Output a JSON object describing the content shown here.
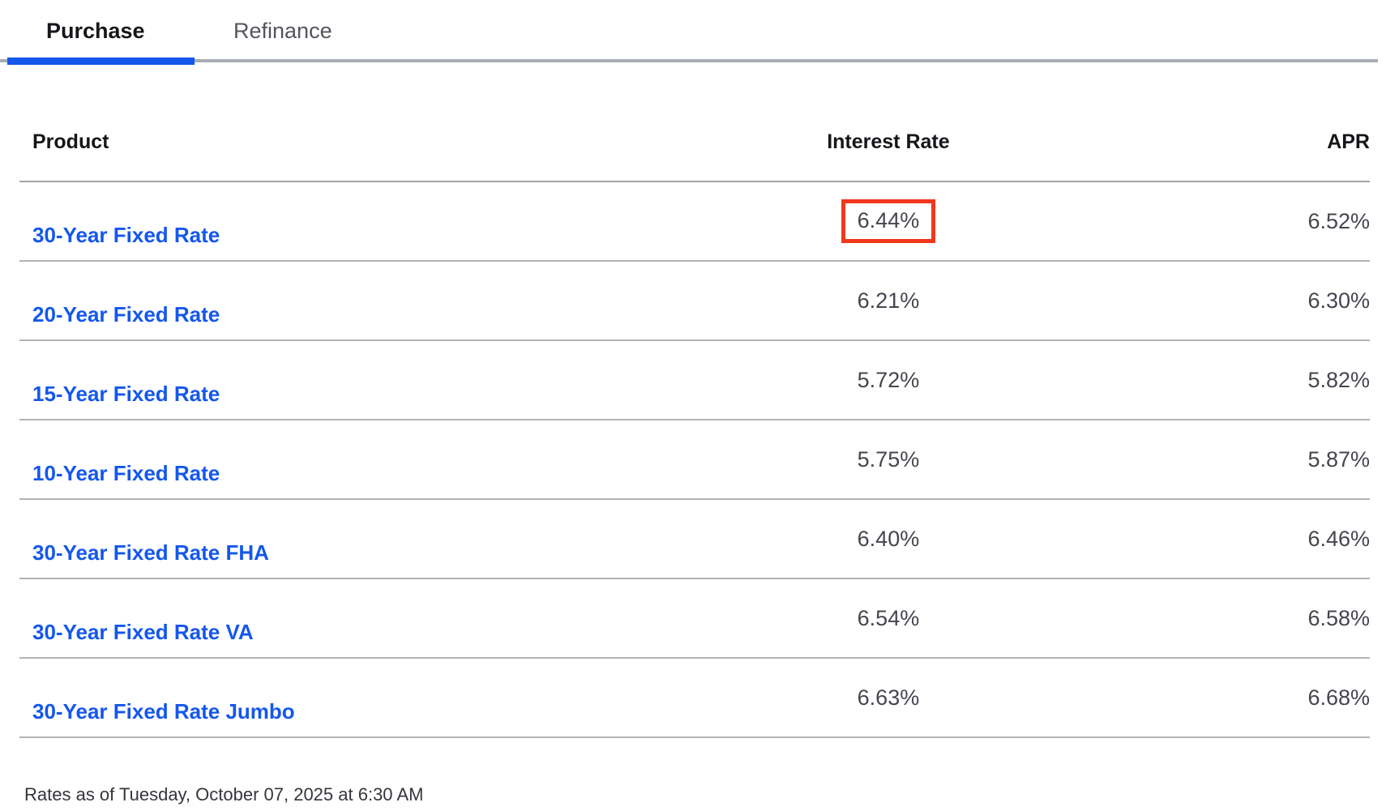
{
  "tabs": [
    {
      "label": "Purchase",
      "active": true
    },
    {
      "label": "Refinance",
      "active": false
    }
  ],
  "table": {
    "columns": [
      "Product",
      "Interest Rate",
      "APR"
    ],
    "rows": [
      {
        "product": "30-Year Fixed Rate",
        "interest_rate": "6.44%",
        "apr": "6.52%",
        "highlighted": true
      },
      {
        "product": "20-Year Fixed Rate",
        "interest_rate": "6.21%",
        "apr": "6.30%",
        "highlighted": false
      },
      {
        "product": "15-Year Fixed Rate",
        "interest_rate": "5.72%",
        "apr": "5.82%",
        "highlighted": false
      },
      {
        "product": "10-Year Fixed Rate",
        "interest_rate": "5.75%",
        "apr": "5.87%",
        "highlighted": false
      },
      {
        "product": "30-Year Fixed Rate FHA",
        "interest_rate": "6.40%",
        "apr": "6.46%",
        "highlighted": false
      },
      {
        "product": "30-Year Fixed Rate VA",
        "interest_rate": "6.54%",
        "apr": "6.58%",
        "highlighted": false
      },
      {
        "product": "30-Year Fixed Rate Jumbo",
        "interest_rate": "6.63%",
        "apr": "6.68%",
        "highlighted": false
      }
    ]
  },
  "footer": {
    "rates_as_of": "Rates as of Tuesday, October 07, 2025 at 6:30 AM"
  },
  "colors": {
    "accent_blue": "#1457eb",
    "highlight_red": "#f2381c"
  }
}
